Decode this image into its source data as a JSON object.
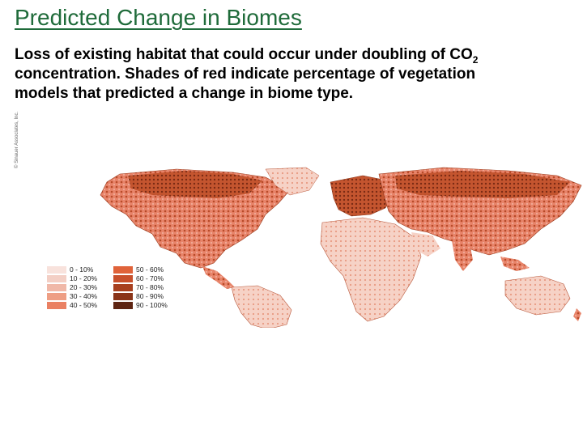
{
  "title": "Predicted Change in Biomes",
  "caption": {
    "text_main": "Loss of existing habitat that could occur under doubling of CO",
    "subscript": "2",
    "text_rest": " concentration. Shades of red indicate percentage of vegetation models that predicted a change in biome type."
  },
  "credit_text": "© Sinauer Associates, Inc.",
  "legend": {
    "items": [
      {
        "label": "0 - 10%",
        "color": "#f8e2dc"
      },
      {
        "label": "50 - 60%",
        "color": "#e0633a"
      },
      {
        "label": "10 - 20%",
        "color": "#f3cfc5"
      },
      {
        "label": "60 - 70%",
        "color": "#c8502c"
      },
      {
        "label": "20 - 30%",
        "color": "#f0b8a8"
      },
      {
        "label": "70 - 80%",
        "color": "#a8401f"
      },
      {
        "label": "30 - 40%",
        "color": "#ee9e84"
      },
      {
        "label": "80 - 90%",
        "color": "#8a3418"
      },
      {
        "label": "40 - 50%",
        "color": "#ea8062"
      },
      {
        "label": "90 - 100%",
        "color": "#5e2412"
      }
    ]
  },
  "colors": {
    "ocean": "#ffffff",
    "title": "#1f6b3a"
  }
}
